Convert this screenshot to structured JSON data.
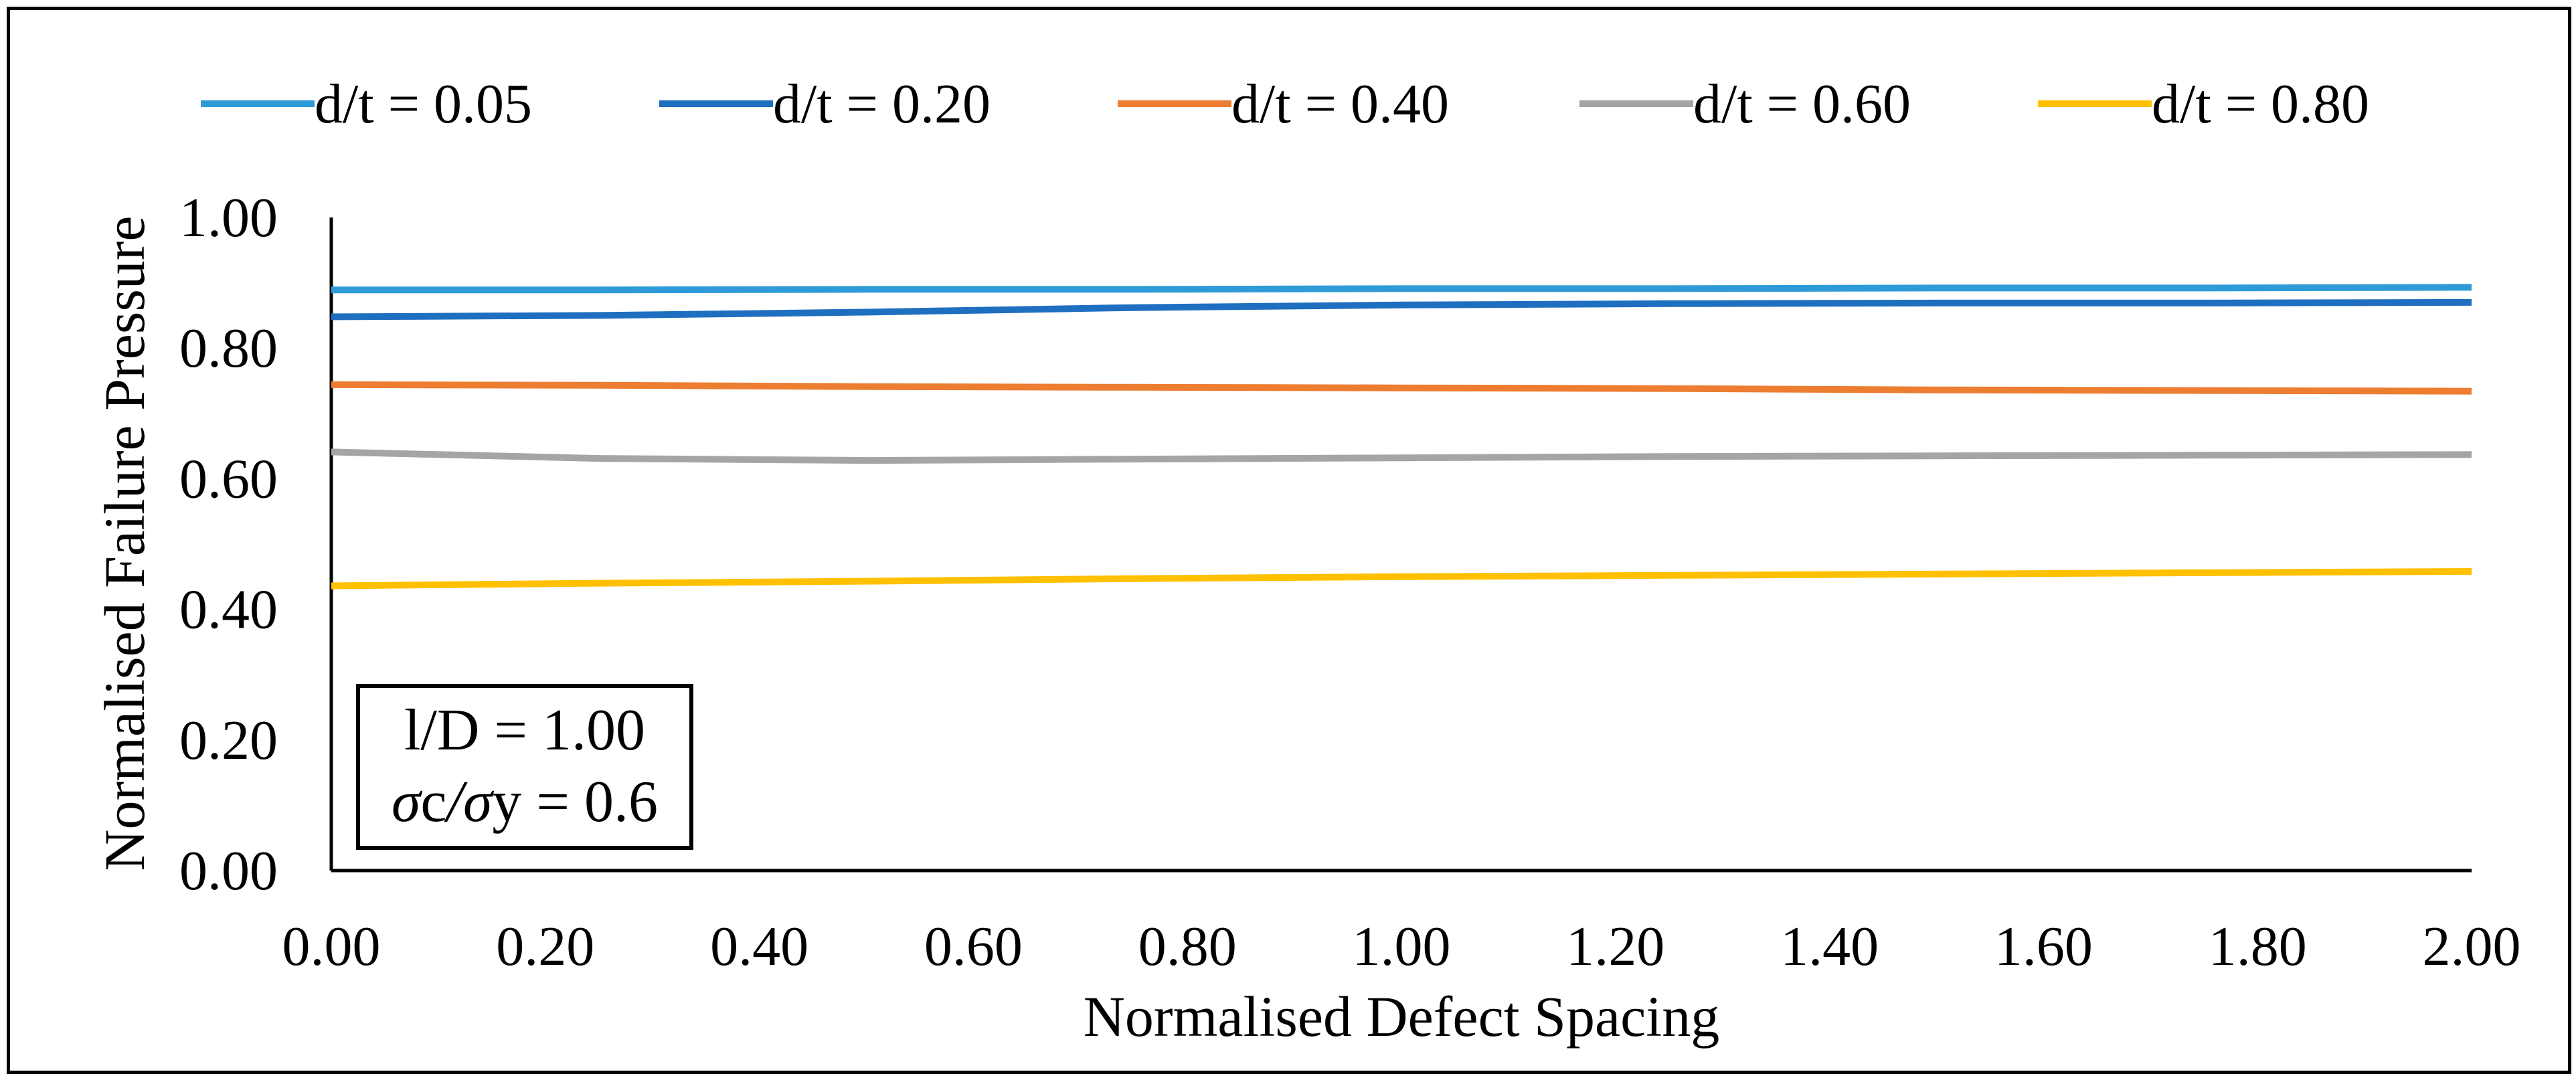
{
  "chart_data": {
    "type": "line",
    "title": "",
    "xlabel": "Normalised Defect Spacing",
    "ylabel": "Normalised Failure Pressure",
    "xlim": [
      0,
      2
    ],
    "ylim": [
      0,
      1
    ],
    "xticks": [
      "0.00",
      "0.20",
      "0.40",
      "0.60",
      "0.80",
      "1.00",
      "1.20",
      "1.40",
      "1.60",
      "1.80",
      "2.00"
    ],
    "yticks": [
      "0.00",
      "0.20",
      "0.40",
      "0.60",
      "0.80",
      "1.00"
    ],
    "grid": false,
    "legend_position": "top",
    "x": [
      0,
      0.25,
      0.5,
      0.75,
      1.0,
      1.25,
      1.5,
      1.75,
      2.0
    ],
    "series": [
      {
        "name": "d/t = 0.05",
        "color": "#2E9BD8",
        "values": [
          0.889,
          0.889,
          0.89,
          0.89,
          0.891,
          0.891,
          0.892,
          0.892,
          0.893
        ]
      },
      {
        "name": "d/t = 0.20",
        "color": "#1F6FC0",
        "values": [
          0.848,
          0.85,
          0.855,
          0.862,
          0.866,
          0.868,
          0.869,
          0.869,
          0.87
        ]
      },
      {
        "name": "d/t = 0.40",
        "color": "#ED7D31",
        "values": [
          0.744,
          0.743,
          0.741,
          0.74,
          0.739,
          0.738,
          0.736,
          0.735,
          0.734
        ]
      },
      {
        "name": "d/t = 0.60",
        "color": "#A5A5A5",
        "values": [
          0.641,
          0.631,
          0.628,
          0.63,
          0.632,
          0.634,
          0.635,
          0.636,
          0.637
        ]
      },
      {
        "name": "d/t = 0.80",
        "color": "#FFC000",
        "values": [
          0.436,
          0.44,
          0.443,
          0.447,
          0.45,
          0.452,
          0.454,
          0.456,
          0.458
        ]
      }
    ],
    "annotation": {
      "line1": "l/D = 1.00",
      "line2_prefix_symbol": "σ",
      "line2_a": "c",
      "line2_slash": "/",
      "line2_symbol2": "σ",
      "line2_b": "y = 0.6"
    }
  }
}
